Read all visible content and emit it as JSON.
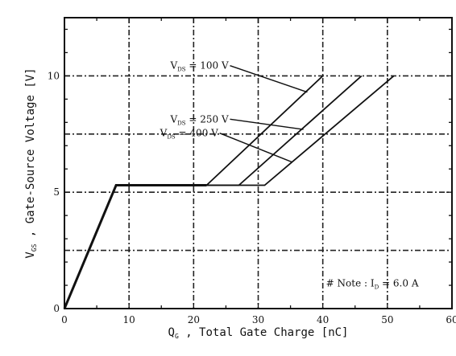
{
  "chart_data": {
    "type": "line",
    "title": "",
    "xlabel": "Q_G , Total Gate Charge [nC]",
    "ylabel": "V_GS , Gate-Source Voltage [V]",
    "xlim": [
      0,
      60
    ],
    "ylim": [
      0,
      12.5
    ],
    "x_ticks": [
      0,
      10,
      20,
      30,
      40,
      50,
      60
    ],
    "y_ticks": [
      0,
      5,
      10
    ],
    "grid": true,
    "grid_style": "dash-dot",
    "series": [
      {
        "name": "V_DS = 100 V",
        "points": [
          [
            0,
            0
          ],
          [
            8,
            5.3
          ],
          [
            22,
            5.3
          ],
          [
            40,
            10
          ]
        ]
      },
      {
        "name": "V_DS = 250 V",
        "points": [
          [
            0,
            0
          ],
          [
            8,
            5.3
          ],
          [
            27,
            5.3
          ],
          [
            46,
            10
          ]
        ]
      },
      {
        "name": "V_DS = 400 V",
        "points": [
          [
            0,
            0
          ],
          [
            8,
            5.3
          ],
          [
            31,
            5.3
          ],
          [
            51,
            10
          ]
        ]
      }
    ],
    "annotations": [
      {
        "text": "V_DS = 100 V",
        "label_at": [
          16.4,
          10.3
        ],
        "arrow_to": [
          37.6,
          9.3
        ]
      },
      {
        "text": "V_DS = 250 V",
        "label_at": [
          16.4,
          8.0
        ],
        "arrow_to": [
          37.0,
          7.7
        ]
      },
      {
        "text": "V_DS = 400 V",
        "label_at": [
          14.8,
          7.4
        ],
        "arrow_to": [
          35.2,
          6.3
        ]
      }
    ],
    "note": "# Note : I_D = 6.0 A"
  }
}
